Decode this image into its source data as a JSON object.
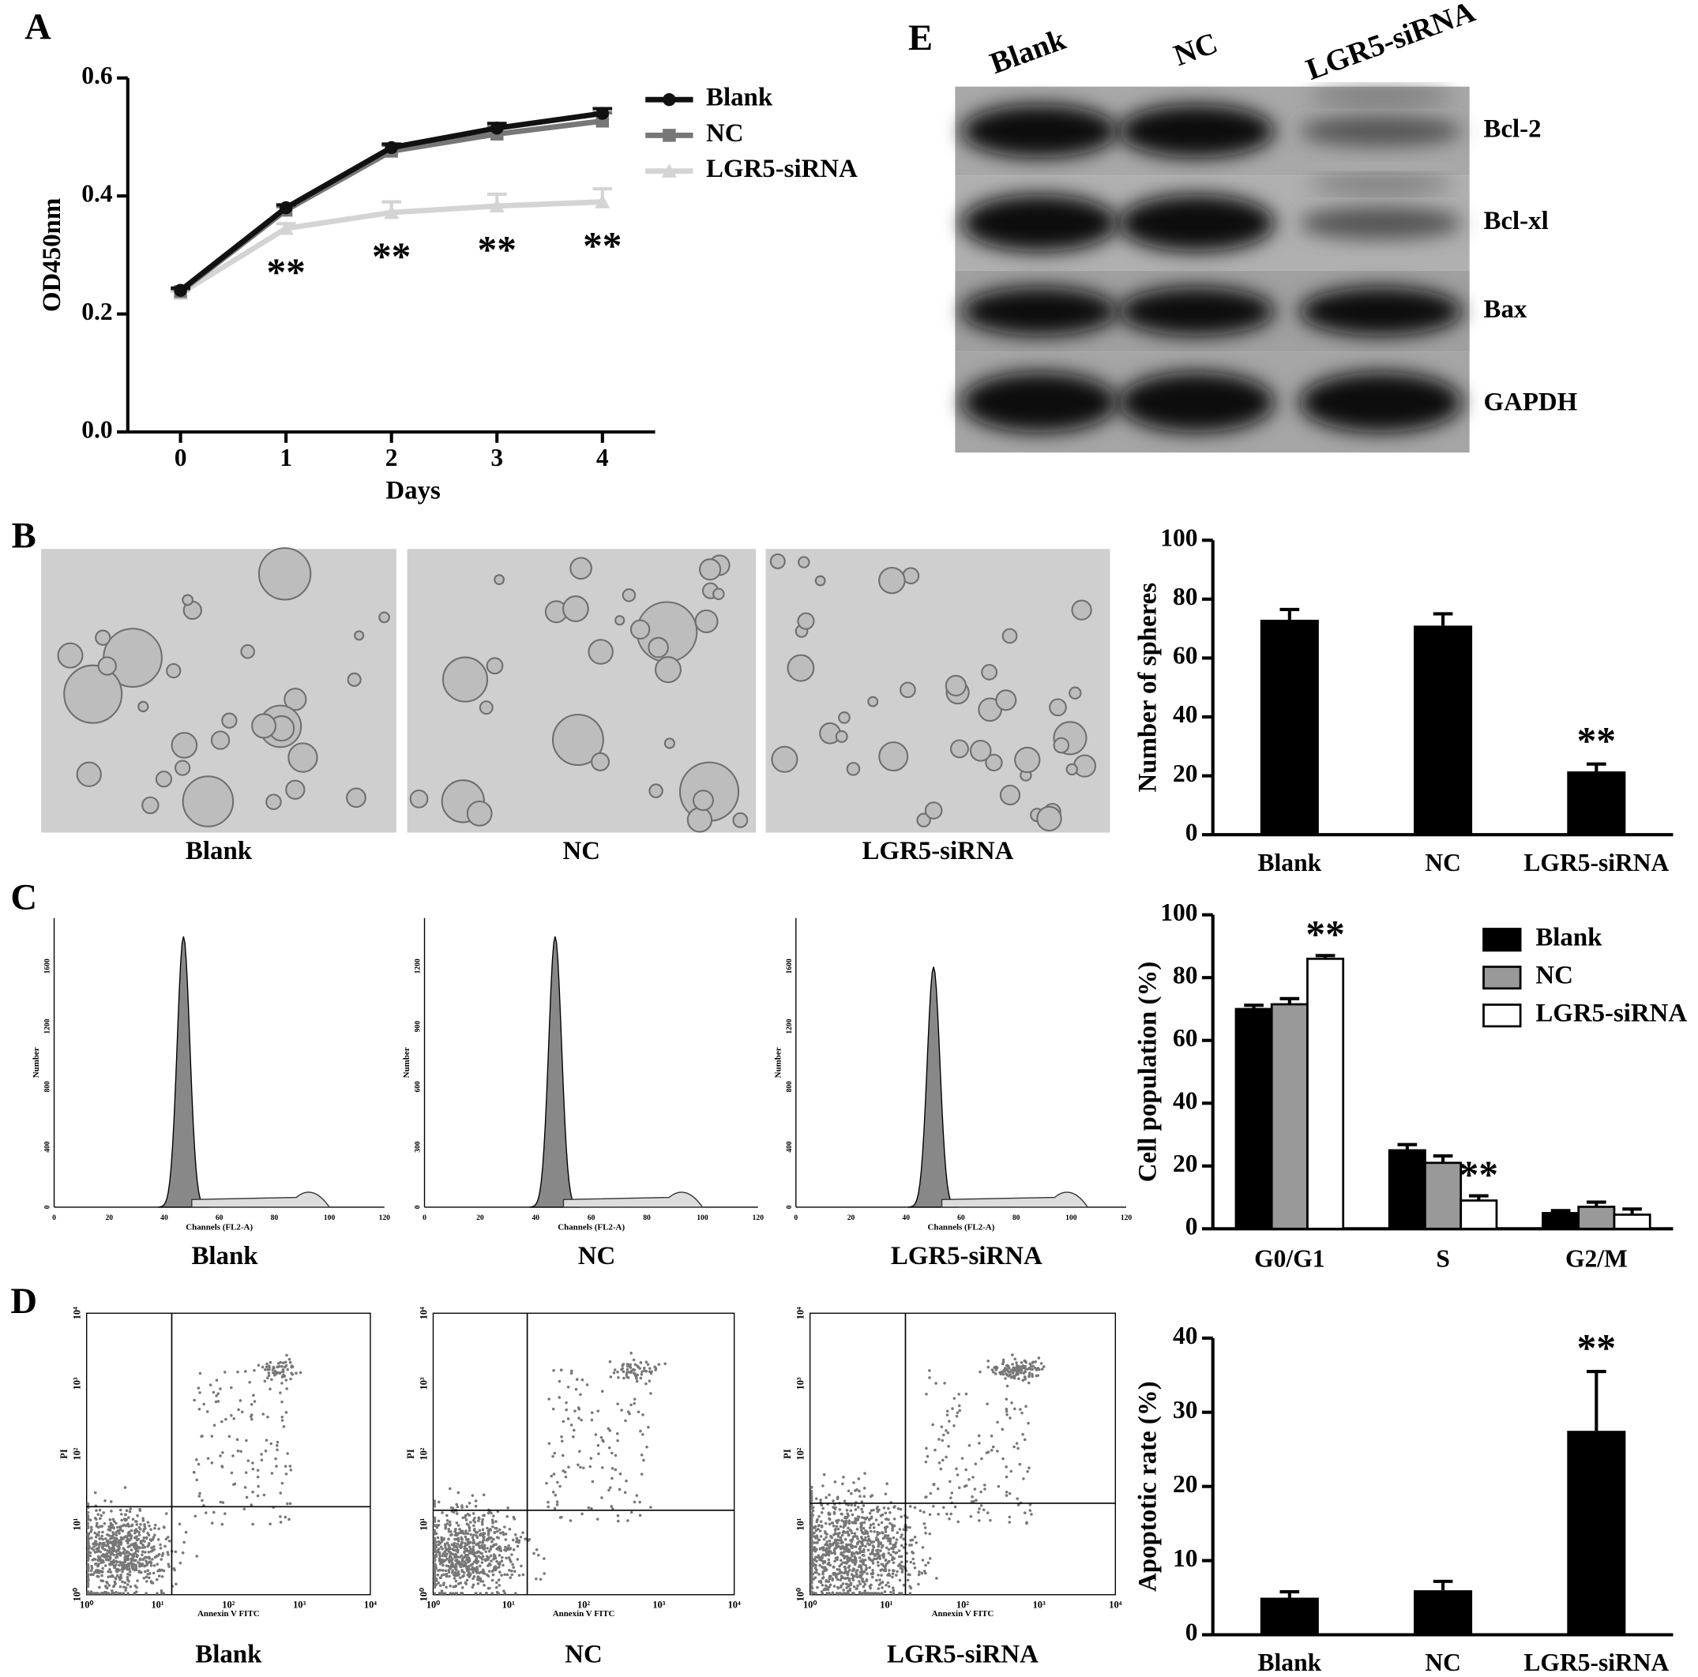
{
  "panel_labels": [
    "A",
    "B",
    "C",
    "D",
    "E"
  ],
  "chart_data": [
    {
      "type": "line",
      "ylabel": "OD450nm",
      "xlabel": "Days",
      "x": [
        0,
        1,
        2,
        3,
        4
      ],
      "xlim": [
        -0.5,
        4.5
      ],
      "xticks": [
        0,
        1,
        2,
        3,
        4
      ],
      "ylim": [
        0,
        0.6
      ],
      "yticks": [
        {
          "value": 0,
          "label": "0.0"
        },
        0.2,
        0.4,
        0.6
      ],
      "series": [
        {
          "name": "Blank",
          "color": "#111111",
          "values": [
            0.24,
            0.38,
            0.482,
            0.515,
            0.54
          ],
          "errors": [
            0.004,
            0.005,
            0.006,
            0.008,
            0.008
          ]
        },
        {
          "name": "NC",
          "color": "#777777",
          "values": [
            0.238,
            0.376,
            0.476,
            0.505,
            0.527
          ],
          "errors": [
            0.004,
            0.006,
            0.01,
            0.012,
            0.014
          ]
        },
        {
          "name": "LGR5-siRNA",
          "color": "#d4d4d4",
          "values": [
            0.235,
            0.345,
            0.372,
            0.383,
            0.39
          ],
          "errors": [
            0.004,
            0.008,
            0.018,
            0.02,
            0.022
          ]
        }
      ],
      "annotations": [
        {
          "text": "**",
          "x": 1
        },
        {
          "text": "**",
          "x": 2
        },
        {
          "text": "**",
          "x": 3
        },
        {
          "text": "**",
          "x": 4
        }
      ]
    },
    {
      "type": "bar",
      "ylabel": "Number of spheres",
      "categories": [
        "Blank",
        "NC",
        "LGR5-siRNA"
      ],
      "values": [
        73,
        71,
        21.5
      ],
      "errors": [
        3.5,
        4,
        2.5
      ],
      "color": "#000000",
      "ylim": [
        0,
        100
      ],
      "yticks": [
        0,
        20,
        40,
        60,
        80,
        100
      ],
      "annotations": [
        {
          "text": "**",
          "x": "LGR5-siRNA"
        }
      ]
    },
    {
      "type": "grouped_bar",
      "ylabel": "Cell population (%)",
      "categories": [
        "G0/G1",
        "S",
        "G2/M"
      ],
      "ylim": [
        0,
        100
      ],
      "yticks": [
        0,
        20,
        40,
        60,
        80,
        100
      ],
      "legend": "upper right",
      "series": [
        {
          "name": "Blank",
          "color": "#000000",
          "values": [
            70,
            25,
            5
          ],
          "errors": [
            1.2,
            1.8,
            0.8
          ]
        },
        {
          "name": "NC",
          "color": "#999999",
          "values": [
            71.5,
            21,
            7
          ],
          "errors": [
            1.8,
            2.2,
            1.5
          ]
        },
        {
          "name": "LGR5-siRNA",
          "color": "#ffffff",
          "values": [
            86,
            9,
            4.5
          ],
          "errors": [
            1,
            1.5,
            1.8
          ]
        }
      ],
      "annotations": [
        {
          "text": "**",
          "x": "G0/G1",
          "series": "LGR5-siRNA"
        },
        {
          "text": "**",
          "x": "S",
          "series": "LGR5-siRNA"
        }
      ]
    },
    {
      "type": "bar",
      "ylabel": "Apoptotic rate (%)",
      "categories": [
        "Blank",
        "NC",
        "LGR5-siRNA"
      ],
      "values": [
        5,
        6,
        27.5
      ],
      "errors": [
        0.8,
        1.2,
        8
      ],
      "color": "#000000",
      "ylim": [
        0,
        40
      ],
      "yticks": [
        0,
        10,
        20,
        30,
        40
      ],
      "annotations": [
        {
          "text": "**",
          "x": "LGR5-siRNA"
        }
      ]
    }
  ],
  "micrographs": {
    "captions": [
      "Blank",
      "NC",
      "LGR5-siRNA"
    ]
  },
  "cell_cycle_histograms": {
    "captions": [
      "Blank",
      "NC",
      "LGR5-siRNA"
    ],
    "xlabel": "Channels (FL2-A)",
    "ylabel": "Number",
    "xticks": [
      0,
      20,
      40,
      60,
      80,
      100,
      120
    ],
    "yticks": [
      [
        0,
        400,
        800,
        1200,
        1600
      ],
      [
        0,
        300,
        600,
        900,
        1200
      ],
      [
        0,
        400,
        800,
        1200,
        1600
      ]
    ]
  },
  "apoptosis_plots": {
    "captions": [
      "Blank",
      "NC",
      "LGR5-siRNA"
    ],
    "xlabel": "Annexin V FITC",
    "ylabel": "PI",
    "ticks": [
      "10⁰",
      "10¹",
      "10²",
      "10³",
      "10⁴"
    ]
  },
  "western_blot": {
    "lanes": [
      "Blank",
      "NC",
      "LGR5-siRNA"
    ],
    "proteins": [
      "Bcl-2",
      "Bcl-xl",
      "Bax",
      "GAPDH"
    ]
  }
}
